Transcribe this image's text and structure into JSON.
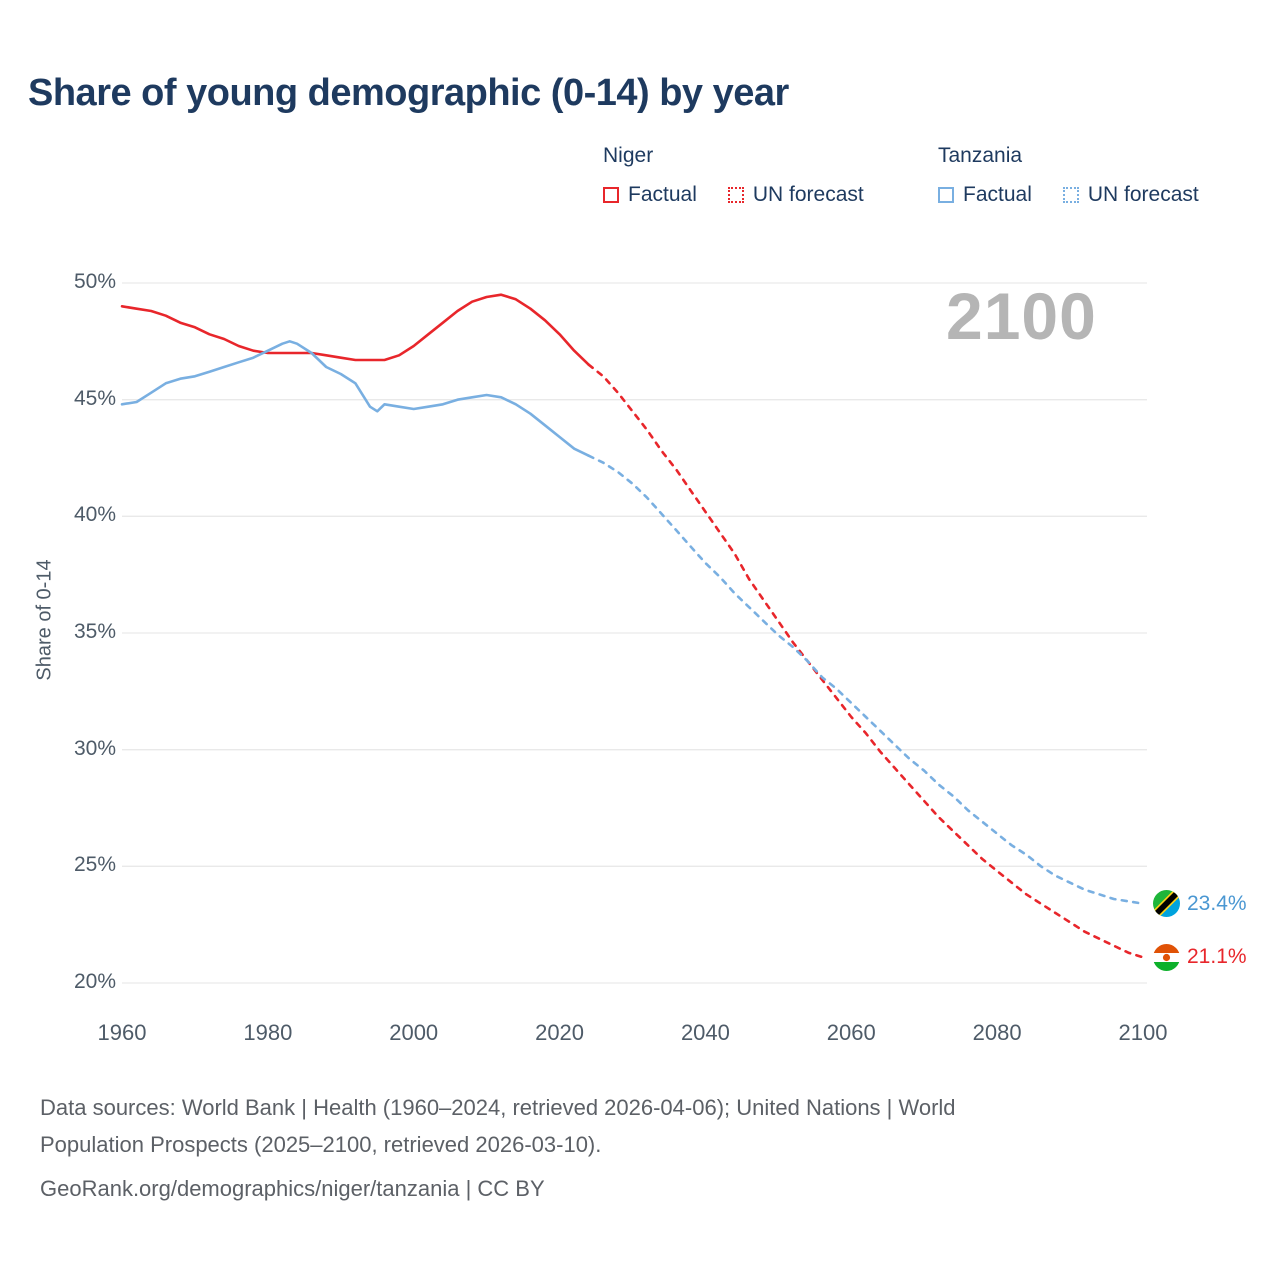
{
  "title": "Share of young demographic (0-14) by year",
  "watermark": "2100",
  "y_axis_title": "Share of 0-14",
  "legend": {
    "niger": {
      "name": "Niger",
      "factual_label": "Factual",
      "forecast_label": "UN forecast"
    },
    "tanzania": {
      "name": "Tanzania",
      "factual_label": "Factual",
      "forecast_label": "UN forecast"
    }
  },
  "end_labels": {
    "tanzania": "23.4%",
    "niger": "21.1%"
  },
  "footer": {
    "line1": "Data sources: World Bank | Health (1960–2024, retrieved 2026-04-06); United Nations | World",
    "line2": "Population Prospects (2025–2100, retrieved 2026-03-10).",
    "line3": "GeoRank.org/demographics/niger/tanzania | CC BY"
  },
  "colors": {
    "niger_line": "#e8262b",
    "tanzania_line": "#79afe1",
    "title_text": "#1e3a5f",
    "axis_text": "#4e5b68",
    "watermark_text": "#b5b5b5",
    "footer_text": "#5c6066",
    "grid": "#e9e9e9"
  },
  "chart_data": {
    "type": "line",
    "title": "Share of young demographic (0-14) by year",
    "xlabel": "",
    "ylabel": "Share of 0-14",
    "ylim": [
      20,
      50
    ],
    "xlim": [
      1960,
      2100
    ],
    "yticks": [
      20,
      25,
      30,
      35,
      40,
      45,
      50
    ],
    "xticks": [
      1960,
      1980,
      2000,
      2020,
      2040,
      2060,
      2080,
      2100
    ],
    "grid": "horizontal",
    "legend_position": "top",
    "watermark": "2100",
    "series": [
      {
        "name": "Niger Factual",
        "color": "#e8262b",
        "style": "solid",
        "points": [
          [
            1960,
            49.0
          ],
          [
            1962,
            48.9
          ],
          [
            1964,
            48.8
          ],
          [
            1966,
            48.6
          ],
          [
            1968,
            48.3
          ],
          [
            1970,
            48.1
          ],
          [
            1972,
            47.8
          ],
          [
            1974,
            47.6
          ],
          [
            1976,
            47.3
          ],
          [
            1978,
            47.1
          ],
          [
            1980,
            47.0
          ],
          [
            1982,
            47.0
          ],
          [
            1984,
            47.0
          ],
          [
            1986,
            47.0
          ],
          [
            1988,
            46.9
          ],
          [
            1990,
            46.8
          ],
          [
            1992,
            46.7
          ],
          [
            1994,
            46.7
          ],
          [
            1996,
            46.7
          ],
          [
            1998,
            46.9
          ],
          [
            2000,
            47.3
          ],
          [
            2002,
            47.8
          ],
          [
            2004,
            48.3
          ],
          [
            2006,
            48.8
          ],
          [
            2008,
            49.2
          ],
          [
            2010,
            49.4
          ],
          [
            2012,
            49.5
          ],
          [
            2014,
            49.3
          ],
          [
            2016,
            48.9
          ],
          [
            2018,
            48.4
          ],
          [
            2020,
            47.8
          ],
          [
            2022,
            47.1
          ],
          [
            2024,
            46.5
          ]
        ]
      },
      {
        "name": "Niger UN forecast",
        "color": "#e8262b",
        "style": "dashed",
        "points": [
          [
            2024,
            46.5
          ],
          [
            2026,
            46.0
          ],
          [
            2028,
            45.3
          ],
          [
            2030,
            44.5
          ],
          [
            2032,
            43.7
          ],
          [
            2034,
            42.8
          ],
          [
            2036,
            42.0
          ],
          [
            2038,
            41.1
          ],
          [
            2040,
            40.2
          ],
          [
            2042,
            39.3
          ],
          [
            2044,
            38.4
          ],
          [
            2046,
            37.3
          ],
          [
            2048,
            36.4
          ],
          [
            2050,
            35.5
          ],
          [
            2052,
            34.6
          ],
          [
            2054,
            33.8
          ],
          [
            2056,
            33.0
          ],
          [
            2058,
            32.2
          ],
          [
            2060,
            31.4
          ],
          [
            2062,
            30.7
          ],
          [
            2064,
            29.9
          ],
          [
            2066,
            29.2
          ],
          [
            2068,
            28.5
          ],
          [
            2070,
            27.8
          ],
          [
            2072,
            27.1
          ],
          [
            2074,
            26.5
          ],
          [
            2076,
            25.9
          ],
          [
            2078,
            25.3
          ],
          [
            2080,
            24.8
          ],
          [
            2082,
            24.3
          ],
          [
            2084,
            23.8
          ],
          [
            2086,
            23.4
          ],
          [
            2088,
            23.0
          ],
          [
            2090,
            22.6
          ],
          [
            2092,
            22.2
          ],
          [
            2094,
            21.9
          ],
          [
            2096,
            21.6
          ],
          [
            2098,
            21.3
          ],
          [
            2100,
            21.1
          ]
        ]
      },
      {
        "name": "Tanzania Factual",
        "color": "#79afe1",
        "style": "solid",
        "points": [
          [
            1960,
            44.8
          ],
          [
            1962,
            44.9
          ],
          [
            1964,
            45.3
          ],
          [
            1966,
            45.7
          ],
          [
            1968,
            45.9
          ],
          [
            1970,
            46.0
          ],
          [
            1972,
            46.2
          ],
          [
            1974,
            46.4
          ],
          [
            1976,
            46.6
          ],
          [
            1978,
            46.8
          ],
          [
            1980,
            47.1
          ],
          [
            1982,
            47.4
          ],
          [
            1983,
            47.5
          ],
          [
            1984,
            47.4
          ],
          [
            1986,
            47.0
          ],
          [
            1988,
            46.4
          ],
          [
            1990,
            46.1
          ],
          [
            1992,
            45.7
          ],
          [
            1994,
            44.7
          ],
          [
            1995,
            44.5
          ],
          [
            1996,
            44.8
          ],
          [
            1998,
            44.7
          ],
          [
            2000,
            44.6
          ],
          [
            2002,
            44.7
          ],
          [
            2004,
            44.8
          ],
          [
            2006,
            45.0
          ],
          [
            2008,
            45.1
          ],
          [
            2010,
            45.2
          ],
          [
            2012,
            45.1
          ],
          [
            2014,
            44.8
          ],
          [
            2016,
            44.4
          ],
          [
            2018,
            43.9
          ],
          [
            2020,
            43.4
          ],
          [
            2022,
            42.9
          ],
          [
            2024,
            42.6
          ]
        ]
      },
      {
        "name": "Tanzania UN forecast",
        "color": "#79afe1",
        "style": "dashed",
        "points": [
          [
            2024,
            42.6
          ],
          [
            2026,
            42.3
          ],
          [
            2028,
            41.9
          ],
          [
            2030,
            41.4
          ],
          [
            2032,
            40.8
          ],
          [
            2034,
            40.1
          ],
          [
            2036,
            39.4
          ],
          [
            2038,
            38.7
          ],
          [
            2040,
            38.0
          ],
          [
            2042,
            37.4
          ],
          [
            2044,
            36.7
          ],
          [
            2046,
            36.1
          ],
          [
            2048,
            35.5
          ],
          [
            2050,
            34.9
          ],
          [
            2052,
            34.4
          ],
          [
            2054,
            33.8
          ],
          [
            2056,
            33.1
          ],
          [
            2058,
            32.6
          ],
          [
            2060,
            32.0
          ],
          [
            2062,
            31.4
          ],
          [
            2064,
            30.8
          ],
          [
            2066,
            30.2
          ],
          [
            2068,
            29.6
          ],
          [
            2070,
            29.1
          ],
          [
            2072,
            28.5
          ],
          [
            2074,
            28.0
          ],
          [
            2076,
            27.4
          ],
          [
            2078,
            26.9
          ],
          [
            2080,
            26.4
          ],
          [
            2082,
            25.9
          ],
          [
            2084,
            25.5
          ],
          [
            2086,
            25.0
          ],
          [
            2088,
            24.6
          ],
          [
            2090,
            24.3
          ],
          [
            2092,
            24.0
          ],
          [
            2094,
            23.8
          ],
          [
            2096,
            23.6
          ],
          [
            2098,
            23.5
          ],
          [
            2100,
            23.4
          ]
        ]
      }
    ],
    "end_annotations": [
      {
        "series": "Tanzania UN forecast",
        "year": 2100,
        "value": 23.4,
        "label": "23.4%",
        "flag": "tanzania"
      },
      {
        "series": "Niger UN forecast",
        "year": 2100,
        "value": 21.1,
        "label": "21.1%",
        "flag": "niger"
      }
    ]
  }
}
